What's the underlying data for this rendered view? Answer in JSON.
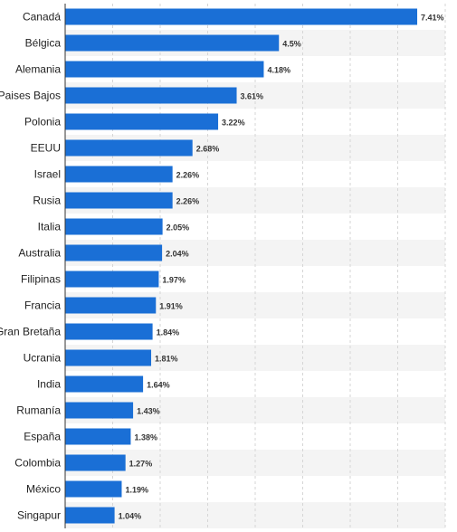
{
  "chart_data": {
    "type": "bar",
    "orientation": "horizontal",
    "categories": [
      "Canadá",
      "Bélgica",
      "Alemania",
      "Paises Bajos",
      "Polonia",
      "EEUU",
      "Israel",
      "Rusia",
      "Italia",
      "Australia",
      "Filipinas",
      "Francia",
      "Gran Bretaña",
      "Ucrania",
      "India",
      "Rumanía",
      "España",
      "Colombia",
      "México",
      "Singapur"
    ],
    "values": [
      7.41,
      4.5,
      4.18,
      3.61,
      3.22,
      2.68,
      2.26,
      2.26,
      2.05,
      2.04,
      1.97,
      1.91,
      1.84,
      1.81,
      1.64,
      1.43,
      1.38,
      1.27,
      1.19,
      1.04
    ],
    "value_labels": [
      "7.41%",
      "4.5%",
      "4.18%",
      "3.61%",
      "3.22%",
      "2.68%",
      "2.26%",
      "2.26%",
      "2.05%",
      "2.04%",
      "1.97%",
      "1.91%",
      "1.84%",
      "1.81%",
      "1.64%",
      "1.43%",
      "1.38%",
      "1.27%",
      "1.19%",
      "1.04%"
    ],
    "xlim": [
      0,
      8
    ],
    "grid": true,
    "bar_color": "#1a6fd6",
    "stripe_color": "#f4f4f4"
  }
}
